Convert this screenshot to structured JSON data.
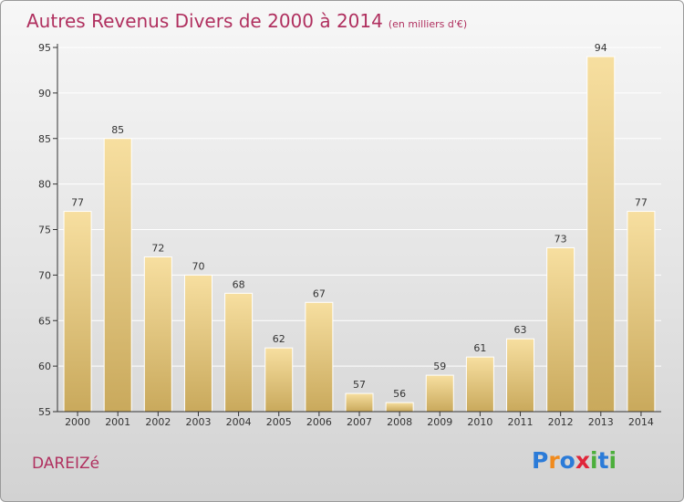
{
  "header": {
    "title": "Autres Revenus Divers de 2000 à 2014",
    "unit": "(en milliers d'€)"
  },
  "place": "DAREIZé",
  "logo": {
    "letters": [
      "P",
      "r",
      "o",
      "x",
      "i",
      "t",
      "i"
    ],
    "colors": [
      "#2b7bd8",
      "#f08a1d",
      "#2b7bd8",
      "#e0263a",
      "#4caf3c",
      "#2b7bd8",
      "#4caf3c"
    ]
  },
  "colors": {
    "title": "#b0305f",
    "bar_top": "#f7dfa0",
    "bar_bottom": "#c9a95c",
    "axis": "#333333"
  },
  "chart_data": {
    "type": "bar",
    "title": "Autres Revenus Divers de 2000 à 2014",
    "subtitle": "(en milliers d'€)",
    "categories": [
      "2000",
      "2001",
      "2002",
      "2003",
      "2004",
      "2005",
      "2006",
      "2007",
      "2008",
      "2009",
      "2010",
      "2011",
      "2012",
      "2013",
      "2014"
    ],
    "values": [
      77,
      85,
      72,
      70,
      68,
      62,
      67,
      57,
      56,
      59,
      61,
      63,
      73,
      94,
      77
    ],
    "ylim": [
      55,
      95
    ],
    "yticks": [
      55,
      60,
      65,
      70,
      75,
      80,
      85,
      90,
      95
    ],
    "grid": true
  }
}
